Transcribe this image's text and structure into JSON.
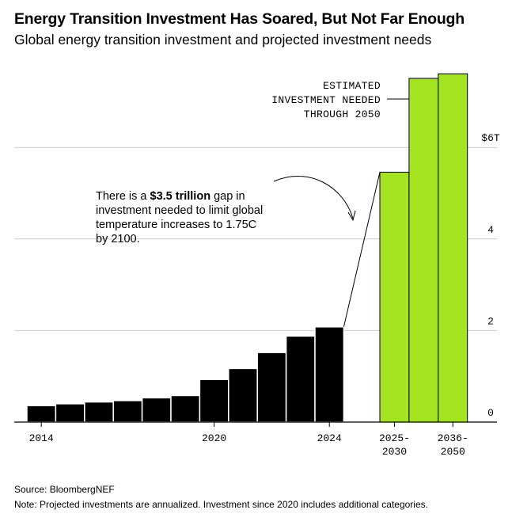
{
  "title": "Energy Transition Investment Has Soared, But Not Far Enough",
  "subtitle": "Global energy transition investment and projected investment needs",
  "annotation": {
    "pre": "There is a ",
    "bold": "$3.5 trillion",
    "post": " gap in investment needed to limit global temperature increases to 1.75C by 2100."
  },
  "callout": {
    "lines": [
      "ESTIMATED",
      "INVESTMENT NEEDED",
      "THROUGH 2050"
    ]
  },
  "source": "Source: BloombergNEF",
  "note": "Note: Projected investments are annualized. Investment since 2020 includes additional categories.",
  "colors": {
    "historical": "#000000",
    "projected": "#a4e31f",
    "grid": "#cccccc"
  },
  "chart_data": {
    "type": "bar",
    "unit": "trillion USD",
    "y_axis_side": "right",
    "ylim": [
      0,
      7
    ],
    "yticks": [
      {
        "value": 0,
        "label": "0"
      },
      {
        "value": 2,
        "label": "2"
      },
      {
        "value": 4,
        "label": "4"
      },
      {
        "value": 6,
        "label": "$6T"
      }
    ],
    "grid": true,
    "categories": [
      "2014",
      "2015",
      "2016",
      "2017",
      "2018",
      "2019",
      "2020",
      "2021",
      "2022",
      "2023",
      "2024",
      "2025-2030a",
      "2025-2030b",
      "2036-2050"
    ],
    "x_labels": [
      {
        "category": "2014",
        "lines": [
          "2014"
        ]
      },
      {
        "category": "2020",
        "lines": [
          "2020"
        ]
      },
      {
        "category": "2024",
        "lines": [
          "2024"
        ]
      },
      {
        "category": "2025-2030a",
        "lines": [
          "2025-",
          "2030"
        ]
      },
      {
        "category": "2036-2050",
        "lines": [
          "2036-",
          "2050"
        ]
      }
    ],
    "historical": [
      0.36,
      0.4,
      0.44,
      0.47,
      0.53,
      0.58,
      0.93,
      1.17,
      1.52,
      1.88,
      2.08
    ],
    "projected": [
      5.46,
      7.51,
      7.61
    ],
    "gap_trillion_usd": 3.5
  }
}
